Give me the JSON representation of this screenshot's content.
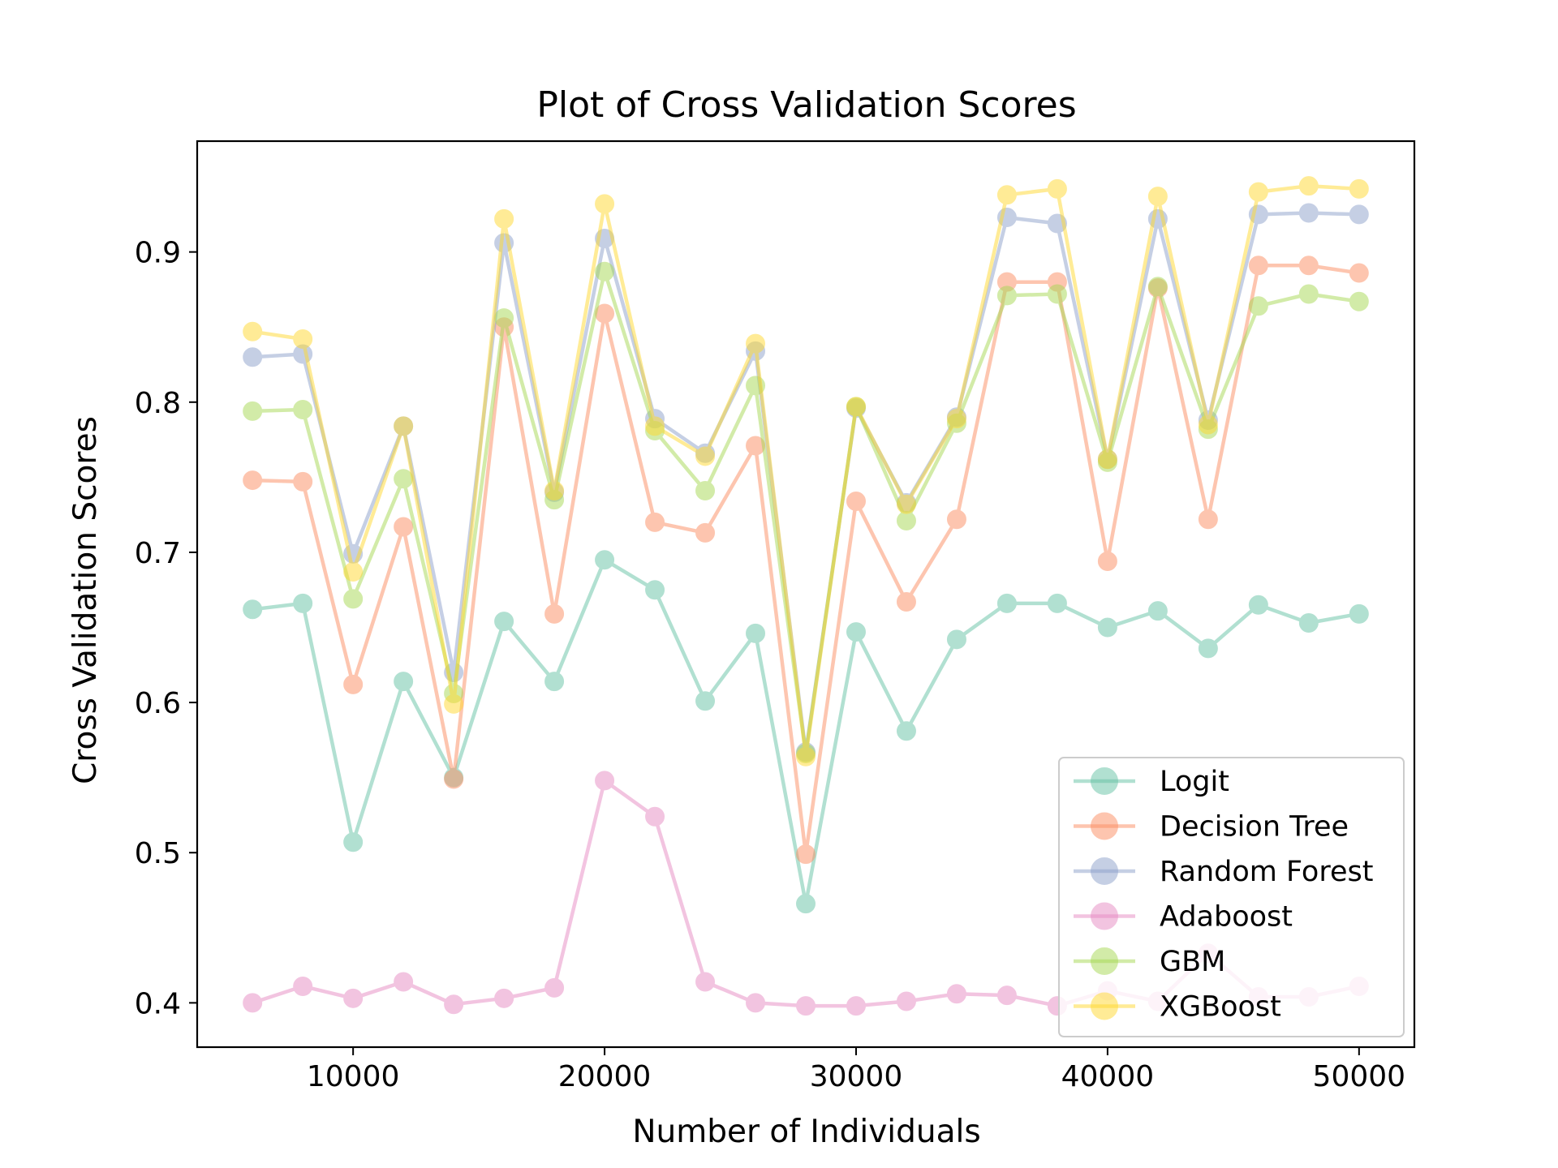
{
  "chart_data": {
    "type": "line",
    "title": "Plot of Cross Validation Scores",
    "xlabel": "Number of Individuals",
    "ylabel": "Cross Validation Scores",
    "xlim": [
      3800,
      52200
    ],
    "ylim": [
      0.3705,
      0.9738
    ],
    "xticks": [
      10000,
      20000,
      30000,
      40000,
      50000
    ],
    "xtick_labels": [
      "10000",
      "20000",
      "30000",
      "40000",
      "50000"
    ],
    "yticks": [
      0.4,
      0.5,
      0.6,
      0.7,
      0.8,
      0.9
    ],
    "ytick_labels": [
      "0.4",
      "0.5",
      "0.6",
      "0.7",
      "0.8",
      "0.9"
    ],
    "grid": false,
    "legend_position": "lower-right",
    "x": [
      6000,
      8000,
      10000,
      12000,
      14000,
      16000,
      18000,
      20000,
      22000,
      24000,
      26000,
      28000,
      30000,
      32000,
      34000,
      36000,
      38000,
      40000,
      42000,
      44000,
      46000,
      48000,
      50000
    ],
    "series": [
      {
        "name": "Logit",
        "color": "#66c2a5",
        "values": [
          0.662,
          0.666,
          0.507,
          0.614,
          0.55,
          0.654,
          0.614,
          0.695,
          0.675,
          0.601,
          0.646,
          0.466,
          0.647,
          0.581,
          0.642,
          0.666,
          0.666,
          0.65,
          0.661,
          0.636,
          0.665,
          0.653,
          0.659
        ]
      },
      {
        "name": "Decision Tree",
        "color": "#fc8d62",
        "values": [
          0.748,
          0.747,
          0.612,
          0.717,
          0.549,
          0.85,
          0.659,
          0.859,
          0.72,
          0.713,
          0.771,
          0.499,
          0.734,
          0.667,
          0.722,
          0.88,
          0.88,
          0.694,
          0.876,
          0.722,
          0.891,
          0.891,
          0.886
        ]
      },
      {
        "name": "Random Forest",
        "color": "#8da0cb",
        "values": [
          0.83,
          0.832,
          0.699,
          0.784,
          0.62,
          0.906,
          0.74,
          0.909,
          0.789,
          0.766,
          0.834,
          0.567,
          0.796,
          0.733,
          0.79,
          0.923,
          0.919,
          0.762,
          0.922,
          0.788,
          0.925,
          0.926,
          0.925
        ]
      },
      {
        "name": "Adaboost",
        "color": "#e78ac3",
        "values": [
          0.4,
          0.411,
          0.403,
          0.414,
          0.399,
          0.403,
          0.41,
          0.548,
          0.524,
          0.414,
          0.4,
          0.398,
          0.398,
          0.401,
          0.406,
          0.405,
          0.398,
          0.408,
          0.401,
          0.433,
          0.404,
          0.404,
          0.411
        ]
      },
      {
        "name": "GBM",
        "color": "#a6d854",
        "values": [
          0.794,
          0.795,
          0.669,
          0.749,
          0.606,
          0.856,
          0.735,
          0.887,
          0.781,
          0.741,
          0.811,
          0.566,
          0.797,
          0.721,
          0.786,
          0.871,
          0.872,
          0.76,
          0.877,
          0.782,
          0.864,
          0.872,
          0.867
        ]
      },
      {
        "name": "XGBoost",
        "color": "#ffd92f",
        "values": [
          0.847,
          0.842,
          0.687,
          0.784,
          0.599,
          0.922,
          0.741,
          0.932,
          0.784,
          0.764,
          0.839,
          0.564,
          0.797,
          0.732,
          0.789,
          0.938,
          0.942,
          0.762,
          0.937,
          0.785,
          0.94,
          0.944,
          0.942
        ]
      }
    ]
  }
}
